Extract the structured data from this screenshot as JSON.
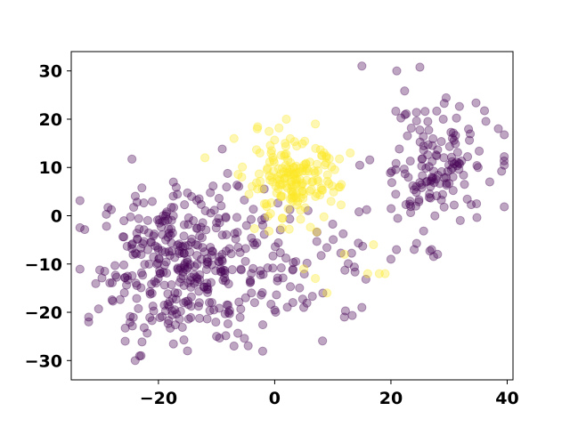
{
  "chart_data": {
    "type": "scatter",
    "title": "",
    "xlabel": "",
    "ylabel": "",
    "xlim": [
      -35,
      41
    ],
    "ylim": [
      -34,
      34
    ],
    "xticks": [
      -20,
      0,
      20,
      40
    ],
    "yticks": [
      -30,
      -20,
      -10,
      0,
      10,
      20,
      30
    ],
    "xtick_labels": [
      "−20",
      "0",
      "20",
      "40"
    ],
    "ytick_labels": [
      "−30",
      "−20",
      "−10",
      "0",
      "10",
      "20",
      "30"
    ],
    "grid": false,
    "legend": "none",
    "marker_alpha": 0.35,
    "series": [
      {
        "color": "#440154",
        "clusters": [
          {
            "center": [
              -16,
              -10
            ],
            "spread": [
              7,
              8
            ],
            "count": 360
          },
          {
            "center": [
              27,
              10
            ],
            "spread": [
              5,
              7
            ],
            "count": 150
          },
          {
            "center": [
              5,
              -10
            ],
            "spread": [
              6,
              6
            ],
            "count": 60
          }
        ],
        "points": [
          [
            -32,
            -21
          ],
          [
            -32,
            -22
          ],
          [
            -24,
            -30
          ],
          [
            -23,
            -29
          ],
          [
            -15,
            -28
          ],
          [
            -10,
            -25
          ],
          [
            -7,
            -27
          ],
          [
            -5,
            -17
          ],
          [
            -4,
            -16
          ],
          [
            5,
            -19
          ],
          [
            12,
            -21
          ],
          [
            15,
            -19
          ],
          [
            20,
            -9
          ],
          [
            15,
            31
          ],
          [
            21,
            30
          ],
          [
            24,
            -7
          ],
          [
            27,
            -7
          ],
          [
            29,
            20
          ],
          [
            35,
            10
          ],
          [
            37,
            7
          ]
        ]
      },
      {
        "color": "#fde725",
        "clusters": [
          {
            "center": [
              3,
              7
            ],
            "spread": [
              4,
              4
            ],
            "count": 180
          }
        ],
        "points": [
          [
            -12,
            12
          ],
          [
            -7,
            16
          ],
          [
            -3,
            18
          ],
          [
            2,
            20
          ],
          [
            7,
            19
          ],
          [
            5,
            -11
          ],
          [
            7,
            -13
          ],
          [
            9,
            -16
          ],
          [
            16,
            -12
          ],
          [
            18,
            -12
          ],
          [
            19,
            -12
          ],
          [
            12,
            -8
          ],
          [
            17,
            -6
          ],
          [
            13,
            13
          ]
        ]
      }
    ]
  }
}
